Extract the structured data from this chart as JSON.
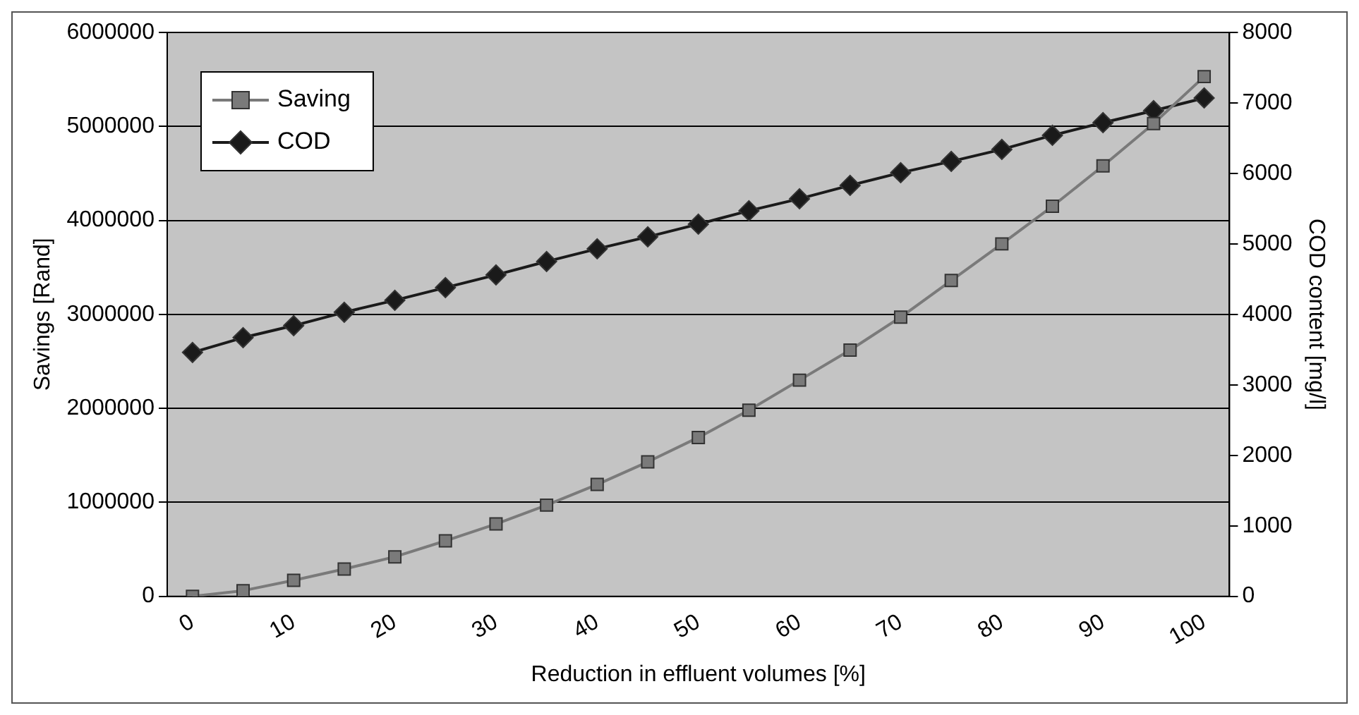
{
  "chart_data": {
    "type": "line",
    "xlabel": "Reduction in effluent volumes [%]",
    "ylabel": "Savings [Rand]",
    "y2label": "COD content [mg/l]",
    "categories": [
      "0",
      null,
      "10",
      null,
      "20",
      null,
      "30",
      null,
      "40",
      null,
      "50",
      null,
      "60",
      null,
      "70",
      null,
      "80",
      null,
      "90",
      null,
      "100"
    ],
    "series": [
      {
        "name": "Saving",
        "color": "#7a7a7a",
        "marker": "square",
        "values": [
          0,
          60000,
          170000,
          290000,
          420000,
          590000,
          770000,
          970000,
          1190000,
          1430000,
          1690000,
          1980000,
          2300000,
          2620000,
          2970000,
          3360000,
          3750000,
          4150000,
          4580000,
          5030000,
          5530000
        ]
      },
      {
        "name": "COD",
        "color": "#1a1a1a",
        "marker": "diamond",
        "axis": "y2",
        "values": [
          3460,
          3670,
          3840,
          4030,
          4200,
          4380,
          4560,
          4750,
          4930,
          5100,
          5280,
          5470,
          5640,
          5830,
          6010,
          6170,
          6340,
          6540,
          6720,
          6890,
          7070
        ]
      }
    ],
    "ylim": [
      0,
      6000000
    ],
    "yticks": [
      0,
      1000000,
      2000000,
      3000000,
      4000000,
      5000000,
      6000000
    ],
    "y2lim": [
      0,
      8000
    ],
    "y2ticks": [
      0,
      1000,
      2000,
      3000,
      4000,
      5000,
      6000,
      7000,
      8000
    ],
    "grid": "y",
    "legend": "top left",
    "line_style": "solid"
  }
}
